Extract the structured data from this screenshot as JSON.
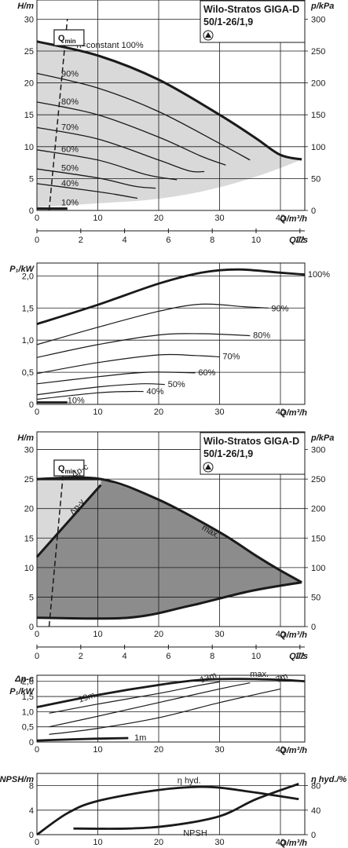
{
  "title_box": {
    "line1": "Wilo-Stratos GIGA-D",
    "line2": "50/1-26/1,9"
  },
  "q_min_label": "Q",
  "q_min_sub": "min",
  "chart_data": [
    {
      "id": "hq_constant",
      "type": "line",
      "xlabel": "Q/m³/h",
      "ylabel": "H/m",
      "y2label": "p/kPa",
      "x2label": "Q/l/s",
      "xlim": [
        0,
        44
      ],
      "ylim": [
        0,
        33
      ],
      "xticks": [
        0,
        10,
        20,
        30,
        40
      ],
      "yticks": [
        0,
        5,
        10,
        15,
        20,
        25,
        30
      ],
      "y2ticks": [
        0,
        50,
        100,
        150,
        200,
        250,
        300
      ],
      "x2ticks": [
        0,
        2,
        4,
        6,
        8,
        10,
        12
      ],
      "series": [
        {
          "name": "n=constant 100%",
          "values": [
            [
              0,
              26.5
            ],
            [
              10,
              24.3
            ],
            [
              20,
              20.5
            ],
            [
              30,
              15
            ],
            [
              36,
              11.3
            ],
            [
              40,
              8.7
            ],
            [
              43.5,
              8
            ]
          ]
        },
        {
          "name": "90%",
          "values": [
            [
              0,
              21.5
            ],
            [
              10,
              19.2
            ],
            [
              20,
              15.5
            ],
            [
              30,
              10.5
            ],
            [
              35,
              7.9
            ]
          ]
        },
        {
          "name": "80%",
          "values": [
            [
              0,
              17
            ],
            [
              10,
              15
            ],
            [
              20,
              11.5
            ],
            [
              27,
              8.5
            ],
            [
              31,
              7.1
            ]
          ]
        },
        {
          "name": "70%",
          "values": [
            [
              0,
              13
            ],
            [
              10,
              11.2
            ],
            [
              20,
              7.9
            ],
            [
              25,
              6.2
            ],
            [
              27.5,
              6.1
            ]
          ]
        },
        {
          "name": "60%",
          "values": [
            [
              0,
              9.5
            ],
            [
              10,
              7.9
            ],
            [
              18,
              5.6
            ],
            [
              23,
              4.8
            ]
          ]
        },
        {
          "name": "50%",
          "values": [
            [
              0,
              6.5
            ],
            [
              10,
              5.1
            ],
            [
              16,
              3.8
            ],
            [
              19.5,
              3.5
            ]
          ]
        },
        {
          "name": "40%",
          "values": [
            [
              0,
              4.2
            ],
            [
              8,
              3.2
            ],
            [
              13,
              2.5
            ],
            [
              16.5,
              1.9
            ]
          ]
        },
        {
          "name": "10%",
          "values": [
            [
              0,
              0.3
            ],
            [
              5,
              0.3
            ]
          ]
        }
      ],
      "qmin_line": [
        [
          2,
          0
        ],
        [
          5,
          30
        ]
      ],
      "qmin_box_x": 4.5,
      "shaded_region": true
    },
    {
      "id": "power",
      "type": "line",
      "xlabel": "Q/m³/h",
      "ylabel": "P₁/kW",
      "xlim": [
        0,
        44
      ],
      "ylim": [
        0,
        2.2
      ],
      "xticks": [
        0,
        10,
        20,
        30,
        40
      ],
      "yticks": [
        0,
        0.5,
        1.0,
        1.5,
        2.0
      ],
      "ytick_labels": [
        "0",
        "0,5",
        "1,0",
        "1,5",
        "2,0"
      ],
      "series": [
        {
          "name": "100%",
          "values": [
            [
              0,
              1.25
            ],
            [
              10,
              1.55
            ],
            [
              20,
              1.88
            ],
            [
              27,
              2.05
            ],
            [
              33,
              2.1
            ],
            [
              40,
              2.05
            ],
            [
              44,
              2.02
            ]
          ]
        },
        {
          "name": "90%",
          "values": [
            [
              0,
              0.93
            ],
            [
              10,
              1.2
            ],
            [
              20,
              1.45
            ],
            [
              27,
              1.56
            ],
            [
              34,
              1.52
            ],
            [
              38,
              1.5
            ]
          ]
        },
        {
          "name": "80%",
          "values": [
            [
              0,
              0.73
            ],
            [
              10,
              0.93
            ],
            [
              20,
              1.08
            ],
            [
              27,
              1.1
            ],
            [
              35,
              1.07
            ]
          ]
        },
        {
          "name": "70%",
          "values": [
            [
              0,
              0.48
            ],
            [
              10,
              0.65
            ],
            [
              20,
              0.77
            ],
            [
              26,
              0.76
            ],
            [
              30,
              0.74
            ]
          ]
        },
        {
          "name": "60%",
          "values": [
            [
              0,
              0.32
            ],
            [
              10,
              0.43
            ],
            [
              18,
              0.5
            ],
            [
              26,
              0.49
            ]
          ]
        },
        {
          "name": "50%",
          "values": [
            [
              0,
              0.15
            ],
            [
              10,
              0.27
            ],
            [
              17,
              0.32
            ],
            [
              21,
              0.31
            ]
          ]
        },
        {
          "name": "40%",
          "values": [
            [
              0,
              0.08
            ],
            [
              10,
              0.18
            ],
            [
              15,
              0.2
            ],
            [
              17.5,
              0.2
            ]
          ]
        },
        {
          "name": "10%",
          "values": [
            [
              0,
              0.03
            ],
            [
              5,
              0.03
            ]
          ]
        }
      ]
    },
    {
      "id": "hq_control",
      "type": "area",
      "xlabel": "Q/m³/h",
      "ylabel": "H/m",
      "y2label": "p/kPa",
      "x2label": "Q/l/s",
      "xlim": [
        0,
        44
      ],
      "ylim": [
        0,
        33
      ],
      "xticks": [
        0,
        10,
        20,
        30,
        40
      ],
      "yticks": [
        0,
        5,
        10,
        15,
        20,
        25,
        30
      ],
      "y2ticks": [
        0,
        50,
        100,
        150,
        200,
        250,
        300
      ],
      "x2ticks": [
        0,
        2,
        4,
        6,
        8,
        10,
        12
      ],
      "labels": {
        "dp_c": "Δp-c",
        "dp_v": "Δp-v",
        "max": "max."
      },
      "series": [
        {
          "name": "max.",
          "values": [
            [
              0,
              25
            ],
            [
              10.5,
              25
            ],
            [
              20,
              21.5
            ],
            [
              30,
              16
            ],
            [
              36,
              12
            ],
            [
              40,
              9.5
            ],
            [
              43.5,
              7.5
            ]
          ]
        },
        {
          "name": "Δp-c",
          "values": [
            [
              0,
              25
            ],
            [
              10.5,
              25
            ]
          ]
        },
        {
          "name": "Δp-v",
          "values": [
            [
              0,
              11.8
            ],
            [
              10.5,
              24
            ]
          ]
        },
        {
          "name": "min",
          "values": [
            [
              0,
              1.5
            ],
            [
              15,
              1.5
            ],
            [
              25,
              3.5
            ],
            [
              35,
              6
            ],
            [
              43.5,
              7.5
            ]
          ]
        }
      ],
      "qmin_line": [
        [
          2,
          0
        ],
        [
          4.5,
          28
        ]
      ]
    },
    {
      "id": "power_control",
      "type": "line",
      "xlabel": "Q/m³/h",
      "ylabel": "Δp-c P₁/kW",
      "xlim": [
        0,
        44
      ],
      "ylim": [
        0,
        2.2
      ],
      "xticks": [
        0,
        10,
        20,
        30,
        40
      ],
      "yticks": [
        0,
        0.5,
        1.0,
        1.5,
        2.0
      ],
      "ytick_labels": [
        "0",
        "0,5",
        "1,0",
        "1,5",
        "2,0"
      ],
      "series": [
        {
          "name": "max.",
          "values": [
            [
              0,
              1.15
            ],
            [
              10,
              1.55
            ],
            [
              20,
              1.88
            ],
            [
              27,
              2.05
            ],
            [
              33,
              2.08
            ],
            [
              40,
              2.05
            ],
            [
              44,
              2.0
            ]
          ]
        },
        {
          "name": "19m",
          "values": [
            [
              2,
              0.95
            ],
            [
              10,
              1.25
            ],
            [
              20,
              1.6
            ],
            [
              27,
              1.88
            ],
            [
              30,
              1.98
            ]
          ]
        },
        {
          "name": "13m",
          "values": [
            [
              2,
              0.5
            ],
            [
              10,
              0.85
            ],
            [
              20,
              1.3
            ],
            [
              30,
              1.75
            ],
            [
              35,
              1.95
            ]
          ]
        },
        {
          "name": "7m",
          "values": [
            [
              2,
              0.25
            ],
            [
              10,
              0.45
            ],
            [
              20,
              0.8
            ],
            [
              30,
              1.3
            ],
            [
              40,
              1.75
            ]
          ]
        },
        {
          "name": "1m",
          "values": [
            [
              0,
              0.05
            ],
            [
              8,
              0.1
            ],
            [
              15,
              0.13
            ]
          ]
        }
      ]
    },
    {
      "id": "npsh_eff",
      "type": "line",
      "xlabel": "Q/m³/h",
      "ylabel": "NPSH/m",
      "y2label": "η hyd./%",
      "xlim": [
        0,
        44
      ],
      "ylim": [
        0,
        10
      ],
      "xticks": [
        0,
        10,
        20,
        30,
        40
      ],
      "yticks": [
        0,
        4,
        8
      ],
      "y2ticks": [
        0,
        40,
        80
      ],
      "series": [
        {
          "name": "η hyd.",
          "values": [
            [
              0,
              0
            ],
            [
              5,
              3.5
            ],
            [
              10,
              5.5
            ],
            [
              20,
              7.3
            ],
            [
              28,
              7.8
            ],
            [
              35,
              7
            ],
            [
              43,
              5.8
            ]
          ]
        },
        {
          "name": "NPSH",
          "values": [
            [
              6,
              1
            ],
            [
              15,
              1
            ],
            [
              22,
              1.5
            ],
            [
              30,
              3
            ],
            [
              36,
              5.8
            ],
            [
              43,
              8.3
            ]
          ]
        }
      ]
    }
  ]
}
